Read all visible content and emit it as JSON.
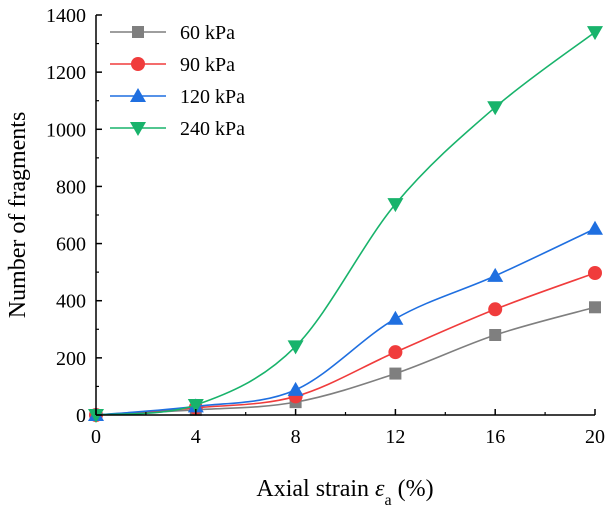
{
  "chart_data": {
    "type": "line",
    "title": "",
    "xlabel_main": "Axial strain ",
    "xlabel_symbol": "ε",
    "xlabel_sub": "a",
    "xlabel_unit": " (%)",
    "ylabel": "Number of fragments",
    "xlim": [
      0,
      20
    ],
    "ylim": [
      0,
      1400
    ],
    "xticks": [
      0,
      4,
      8,
      12,
      16,
      20
    ],
    "yticks": [
      0,
      200,
      400,
      600,
      800,
      1000,
      1200,
      1400
    ],
    "x": [
      0,
      4,
      8,
      12,
      16,
      20
    ],
    "series": [
      {
        "name": "60 kPa",
        "values": [
          0,
          18,
          45,
          145,
          280,
          377
        ],
        "color": "#7f7f7f",
        "marker": "square"
      },
      {
        "name": "90 kPa",
        "values": [
          0,
          25,
          65,
          220,
          370,
          497
        ],
        "color": "#f03c3c",
        "marker": "circle"
      },
      {
        "name": "120 kPa",
        "values": [
          0,
          30,
          88,
          337,
          487,
          652
        ],
        "color": "#1f6fe0",
        "marker": "triangle-up"
      },
      {
        "name": "240 kPa",
        "values": [
          0,
          35,
          240,
          738,
          1077,
          1340
        ],
        "color": "#18b36b",
        "marker": "triangle-down"
      }
    ],
    "legend_position": "top-left"
  }
}
